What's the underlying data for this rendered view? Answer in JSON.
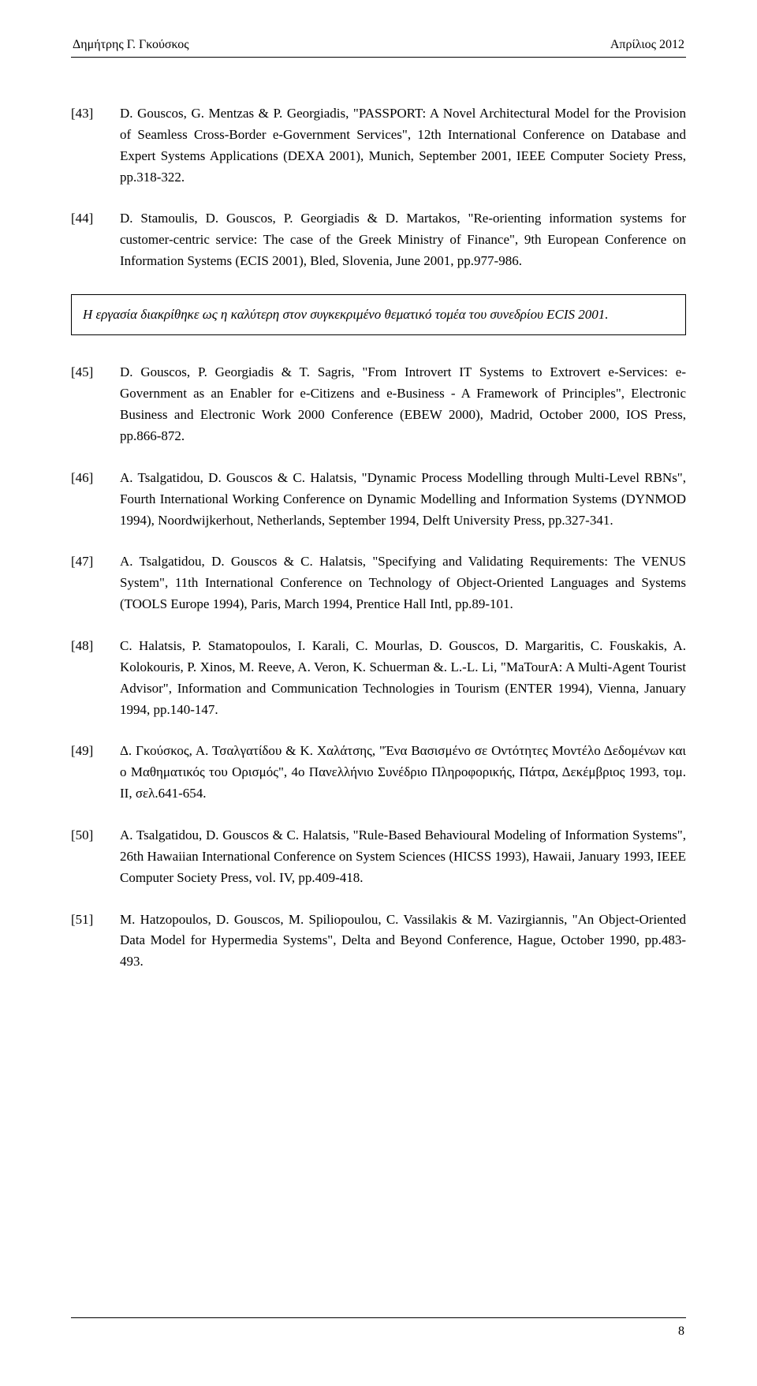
{
  "header": {
    "left": "Δημήτρης Γ. Γκούσκος",
    "right": "Απρίλιος 2012"
  },
  "refs": [
    {
      "num": "[43]",
      "body": "D. Gouscos, G. Mentzas & P. Georgiadis, \"PASSPORT: A Novel Architectural Model for the Provision of Seamless Cross-Border e-Government Services\", 12th International Conference on Database and Expert Systems Applications (DEXA 2001), Munich, September 2001, IEEE Computer Society Press, pp.318-322."
    },
    {
      "num": "[44]",
      "body": "D. Stamoulis, D. Gouscos, P. Georgiadis & D. Martakos, \"Re-orienting information systems for customer-centric service: The case of the Greek Ministry of Finance\", 9th European Conference on Information Systems (ECIS 2001), Bled, Slovenia, June 2001, pp.977-986."
    }
  ],
  "callout": "Η εργασία διακρίθηκε ως η καλύτερη στον συγκεκριμένο θεματικό τομέα του συνεδρίου ECIS 2001.",
  "refs2": [
    {
      "num": "[45]",
      "body": "D. Gouscos, P. Georgiadis & T. Sagris, \"From Introvert IT Systems to Extrovert e-Services: e-Government as an Enabler for e-Citizens and e-Business - A Framework of Principles\", Electronic Business and Electronic Work 2000 Conference (EBEW 2000), Madrid, October 2000, IOS Press, pp.866-872."
    },
    {
      "num": "[46]",
      "body": "A. Tsalgatidou, D. Gouscos & C. Halatsis, \"Dynamic Process Modelling through Multi-Level RBNs\", Fourth International Working Conference on Dynamic Modelling and Information Systems (DYNMOD 1994), Noordwijkerhout, Netherlands, September 1994, Delft University Press, pp.327-341."
    },
    {
      "num": "[47]",
      "body": "A. Tsalgatidou, D. Gouscos & C. Halatsis, \"Specifying and Validating Requirements: The VENUS System\", 11th International Conference on Technology of Object-Oriented Languages and Systems (TOOLS Europe 1994), Paris, March 1994, Prentice Hall Intl, pp.89-101."
    },
    {
      "num": "[48]",
      "body": "C. Halatsis, P. Stamatopoulos, I. Karali, C. Mourlas, D. Gouscos, D. Margaritis, C. Fouskakis, A. Kolokouris, P. Xinos, M. Reeve, A. Veron, K. Schuerman &. L.-L. Li, \"MaTourA: A Multi-Agent Tourist Advisor\", Information and Communication Technologies in Tourism (ENTER 1994), Vienna, January 1994, pp.140-147."
    },
    {
      "num": "[49]",
      "body": "Δ. Γκούσκος, Α. Τσαλγατίδου & Κ. Χαλάτσης, \"Ένα Βασισμένο σε Οντότητες Μοντέλο Δεδομένων και ο Μαθηματικός του Ορισμός\", 4ο Πανελλήνιο Συνέδριο Πληροφορικής, Πάτρα, Δεκέμβριος 1993, τομ. ΙΙ, σελ.641-654."
    },
    {
      "num": "[50]",
      "body": "A. Tsalgatidou, D. Gouscos & C. Halatsis, \"Rule-Based Behavioural Modeling of Information Systems\", 26th Hawaiian International Conference on System Sciences (HICSS 1993), Hawaii, January 1993, IEEE Computer Society Press, vol. IV, pp.409-418."
    },
    {
      "num": "[51]",
      "body": "M. Hatzopoulos, D. Gouscos, M. Spiliopoulou, C. Vassilakis & M. Vazirgiannis, \"An Object-Oriented Data Model for Hypermedia Systems\", Delta and Beyond Conference, Hague, October 1990, pp.483-493."
    }
  ],
  "footer": {
    "page": "8"
  }
}
